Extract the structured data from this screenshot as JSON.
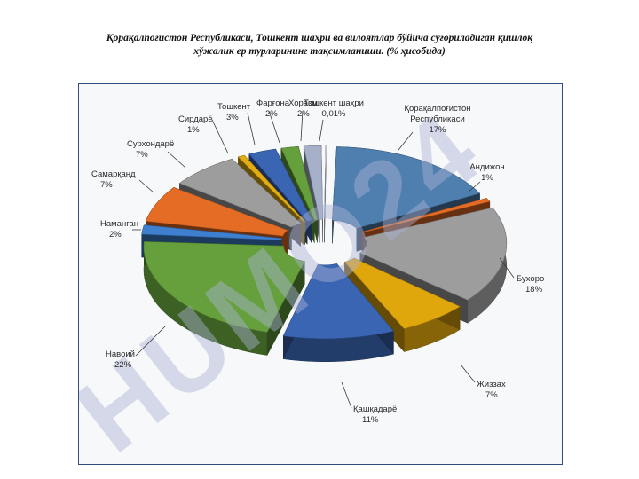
{
  "title_line1": "Қорақалпоғистон Республикаси, Тошкент шаҳри ва вилоятлар бўйича суғориладиган қишлоқ",
  "title_line2": "хўжалик ер турларининг тақсимланиши. (% ҳисобида)",
  "chart_data": {
    "type": "pie",
    "style": "3d-exploded",
    "title": "Қорақалпоғистон Республикаси, Тошкент шаҳри ва вилоятлар бўйича суғориладиган қишлоқ хўжалик ер турларининг тақсимланиши. (% ҳисобида)",
    "slices": [
      {
        "name": "Тошкент шаҳри",
        "value": 0.01,
        "value_label": "0,01%",
        "color": "#c5cde0"
      },
      {
        "name": "Қорақалпоғистон Республикаси",
        "name_lines": [
          "Қорақалпоғистон",
          "Республикаси"
        ],
        "value": 17,
        "value_label": "17%",
        "color": "#4f7fae"
      },
      {
        "name": "Андижон",
        "value": 1,
        "value_label": "1%",
        "color": "#e46c25"
      },
      {
        "name": "Бухоро",
        "value": 18,
        "value_label": "18%",
        "color": "#9d9d9d"
      },
      {
        "name": "Жиззах",
        "value": 7,
        "value_label": "7%",
        "color": "#e0a70c"
      },
      {
        "name": "Қашқадарё",
        "value": 11,
        "value_label": "11%",
        "color": "#3a65b3"
      },
      {
        "name": "Навоий",
        "value": 22,
        "value_label": "22%",
        "color": "#65a03c"
      },
      {
        "name": "Наманган",
        "value": 2,
        "value_label": "2%",
        "color": "#3f7fd0"
      },
      {
        "name": "Самарқанд",
        "value": 7,
        "value_label": "7%",
        "color": "#e46c25"
      },
      {
        "name": "Сурхондарё",
        "value": 7,
        "value_label": "7%",
        "color": "#9d9d9d"
      },
      {
        "name": "Сирдарё",
        "value": 1,
        "value_label": "1%",
        "color": "#e3ad12"
      },
      {
        "name": "Тошкент",
        "value": 3,
        "value_label": "3%",
        "color": "#3a65b3"
      },
      {
        "name": "Фарғона",
        "value": 2,
        "value_label": "2%",
        "color": "#65a03c"
      },
      {
        "name": "Хоразм",
        "value": 2,
        "value_label": "2%",
        "color": "#a6b1c9"
      }
    ]
  },
  "watermark": "HUMO24"
}
